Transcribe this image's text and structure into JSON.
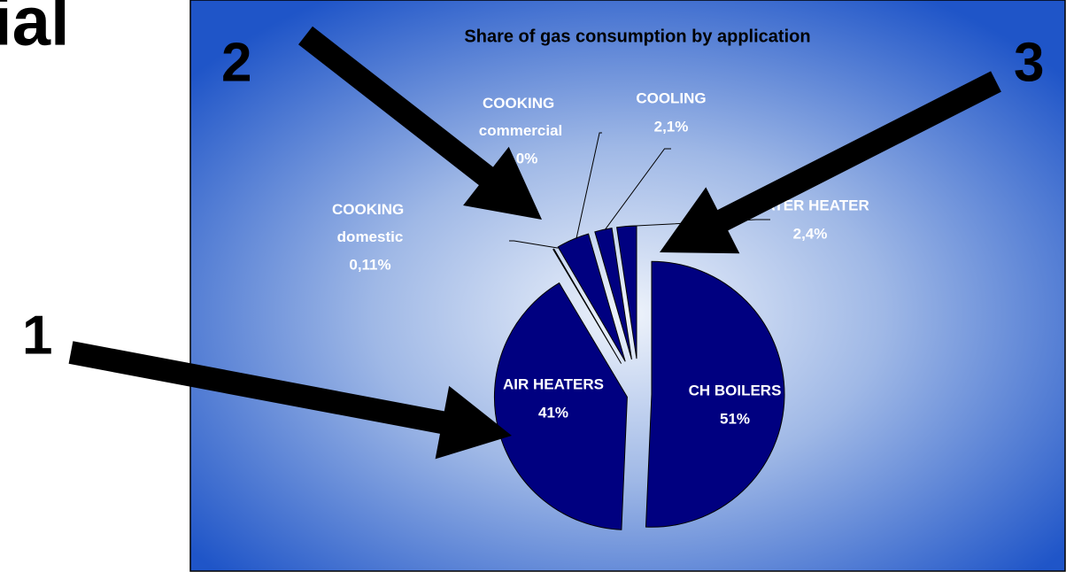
{
  "slide_title": "ial",
  "callouts": [
    "1",
    "2",
    "3"
  ],
  "chart_data": {
    "type": "pie",
    "title": "Share of gas consumption by application",
    "categories": [
      "CH BOILERS",
      "AIR HEATERS",
      "COOKING domestic",
      "COOKING commercial",
      "COOLING",
      "WATER HEATER"
    ],
    "values": [
      51,
      41,
      0.11,
      4.0,
      2.1,
      2.4
    ],
    "value_labels": [
      "51%",
      "41%",
      "0,11%",
      "4,0%",
      "2,1%",
      "2,4%"
    ],
    "colors": [
      "#000080",
      "#000080",
      "#ff9900",
      "#000080",
      "#000080",
      "#000080"
    ]
  }
}
